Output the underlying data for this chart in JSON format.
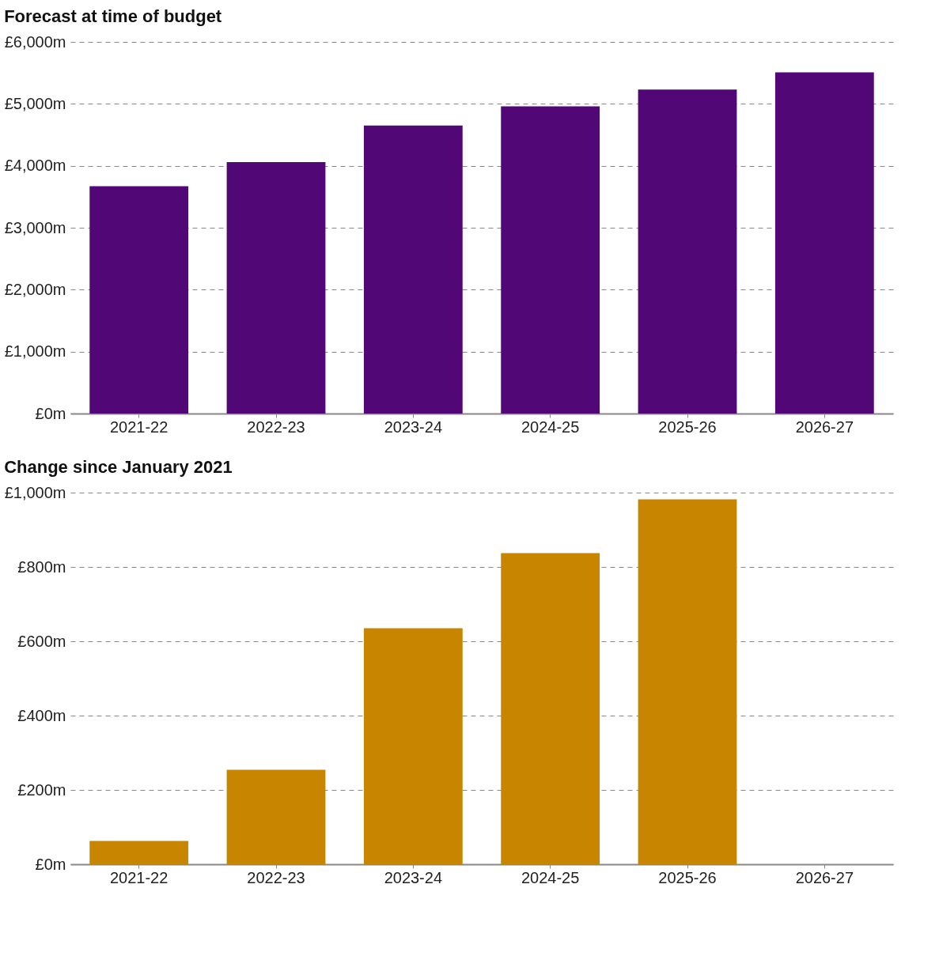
{
  "chart_data": [
    {
      "type": "bar",
      "title": "Forecast at time of budget",
      "categories": [
        "2021-22",
        "2022-23",
        "2023-24",
        "2024-25",
        "2025-26",
        "2026-27"
      ],
      "series": [
        {
          "color": "#510775",
          "values": [
            3670,
            4060,
            4650,
            4960,
            5230,
            5510
          ]
        }
      ],
      "ylim": [
        0,
        6000
      ],
      "yticks": [
        {
          "value": 0,
          "label": "£0m"
        },
        {
          "value": 1000,
          "label": "£1,000m"
        },
        {
          "value": 2000,
          "label": "£2,000m"
        },
        {
          "value": 3000,
          "label": "£3,000m"
        },
        {
          "value": 4000,
          "label": "£4,000m"
        },
        {
          "value": 5000,
          "label": "£5,000m"
        },
        {
          "value": 6000,
          "label": "£6,000m"
        }
      ],
      "grid": "y"
    },
    {
      "type": "bar",
      "title": "Change since January 2021",
      "categories": [
        "2021-22",
        "2022-23",
        "2023-24",
        "2024-25",
        "2025-26",
        "2026-27"
      ],
      "series": [
        {
          "color": "#c78500",
          "values": [
            63,
            254,
            635,
            837,
            982,
            null
          ]
        }
      ],
      "ylim": [
        0,
        1000
      ],
      "yticks": [
        {
          "value": 0,
          "label": "£0m"
        },
        {
          "value": 200,
          "label": "£200m"
        },
        {
          "value": 400,
          "label": "£400m"
        },
        {
          "value": 600,
          "label": "£600m"
        },
        {
          "value": 800,
          "label": "£800m"
        },
        {
          "value": 1000,
          "label": "£1,000m"
        }
      ],
      "grid": "y"
    }
  ]
}
